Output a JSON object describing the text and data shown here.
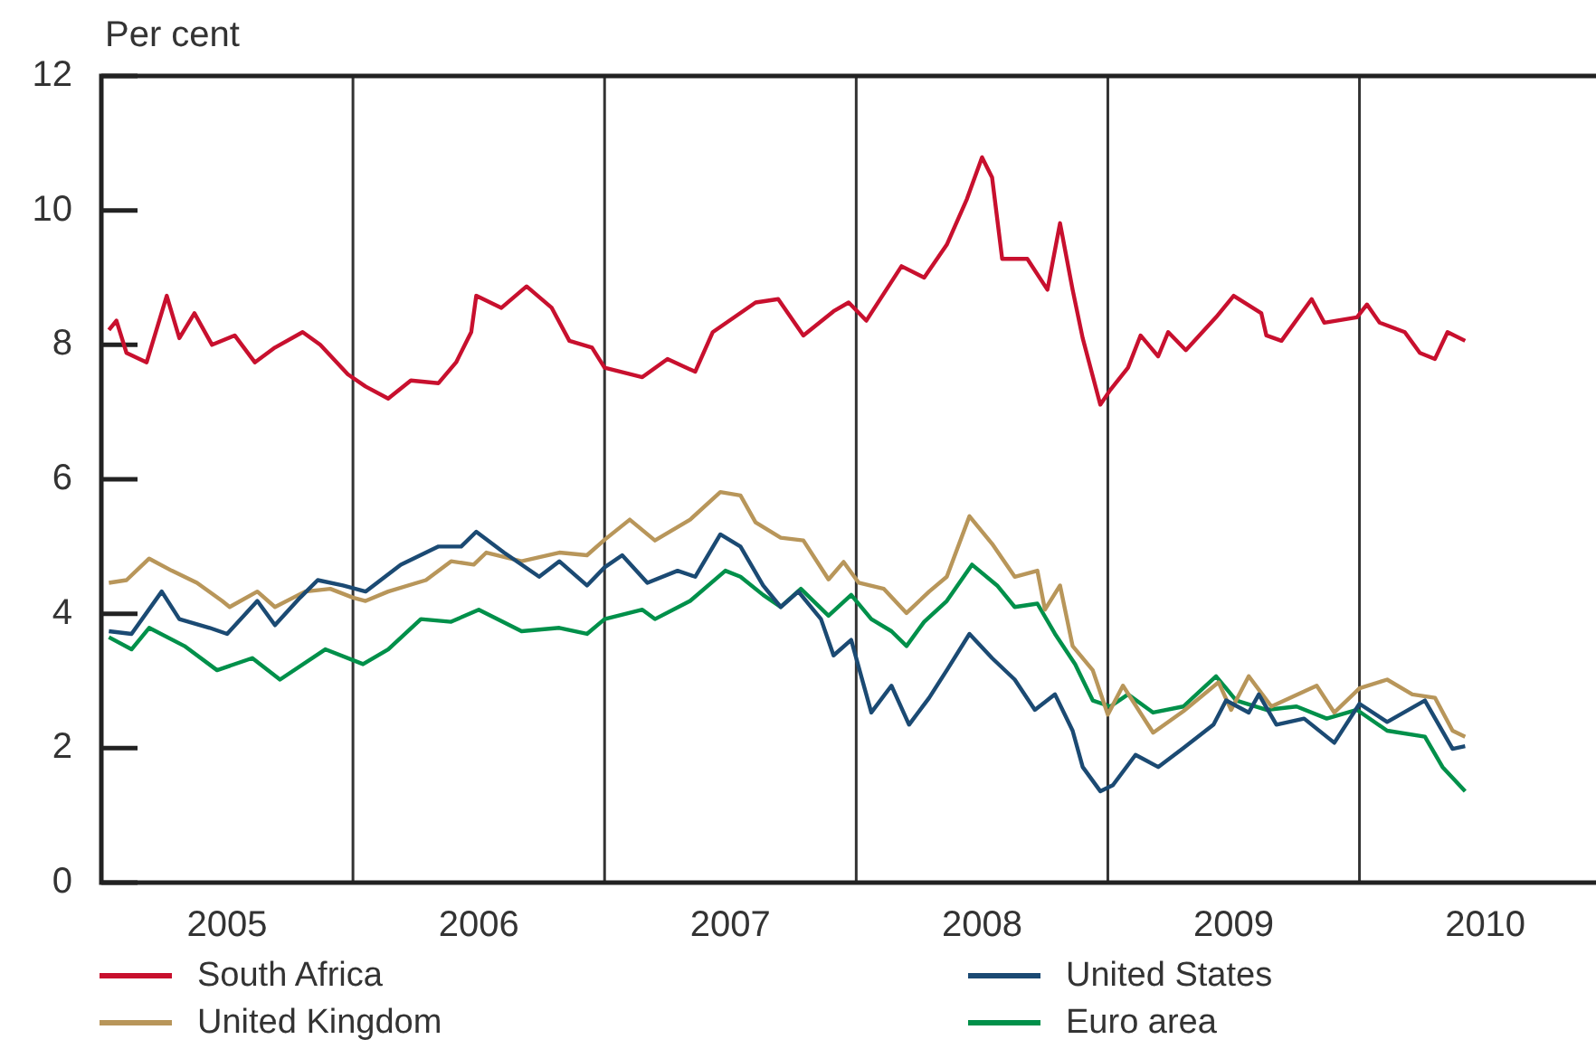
{
  "chart_data": {
    "type": "line",
    "ylabel": "Per cent",
    "xlim": [
      2005,
      2010.94
    ],
    "xticks": [
      {
        "value": 2005.5,
        "label": "2005"
      },
      {
        "value": 2006.5,
        "label": "2006"
      },
      {
        "value": 2007.5,
        "label": "2007"
      },
      {
        "value": 2008.5,
        "label": "2008"
      },
      {
        "value": 2009.5,
        "label": "2009"
      },
      {
        "value": 2010.5,
        "label": "2010"
      }
    ],
    "ylim": [
      0,
      12
    ],
    "yticks": [
      0,
      2,
      4,
      6,
      8,
      10,
      12
    ],
    "grid": false,
    "legend": "bottom",
    "line_style": "solid",
    "marker": "none",
    "ref_lines": [
      {
        "axis": "x",
        "value": 2006,
        "color": "#333333"
      },
      {
        "axis": "x",
        "value": 2007,
        "color": "#333333"
      },
      {
        "axis": "x",
        "value": 2008,
        "color": "#333333"
      },
      {
        "axis": "x",
        "value": 2009,
        "color": "#333333"
      },
      {
        "axis": "x",
        "value": 2010,
        "color": "#333333"
      }
    ],
    "series": [
      {
        "name": "South Africa",
        "color": "#c8102e",
        "x": [
          2005.03,
          2005.06,
          2005.1,
          2005.18,
          2005.26,
          2005.31,
          2005.37,
          2005.44,
          2005.53,
          2005.61,
          2005.69,
          2005.8,
          2005.87,
          2005.98,
          2006.05,
          2006.14,
          2006.23,
          2006.34,
          2006.41,
          2006.47,
          2006.49,
          2006.59,
          2006.69,
          2006.79,
          2006.86,
          2006.95,
          2007.0,
          2007.15,
          2007.25,
          2007.36,
          2007.43,
          2007.6,
          2007.69,
          2007.79,
          2007.91,
          2007.97,
          2008.04,
          2008.18,
          2008.27,
          2008.36,
          2008.44,
          2008.5,
          2008.54,
          2008.58,
          2008.68,
          2008.76,
          2008.81,
          2008.86,
          2008.9,
          2008.97,
          2009.01,
          2009.08,
          2009.13,
          2009.2,
          2009.24,
          2009.31,
          2009.43,
          2009.5,
          2009.61,
          2009.63,
          2009.69,
          2009.81,
          2009.86,
          2009.99,
          2010.03,
          2010.08,
          2010.18,
          2010.24,
          2010.3,
          2010.35,
          2010.42
        ],
        "values": [
          8.22,
          8.36,
          7.88,
          7.74,
          8.73,
          8.1,
          8.47,
          8.0,
          8.14,
          7.74,
          7.96,
          8.19,
          8.0,
          7.56,
          7.38,
          7.2,
          7.47,
          7.43,
          7.74,
          8.19,
          8.73,
          8.55,
          8.87,
          8.55,
          8.06,
          7.96,
          7.66,
          7.52,
          7.79,
          7.6,
          8.19,
          8.63,
          8.68,
          8.14,
          8.5,
          8.63,
          8.36,
          9.17,
          9.0,
          9.49,
          10.17,
          10.79,
          10.49,
          9.28,
          9.28,
          8.82,
          9.81,
          8.82,
          8.1,
          7.11,
          7.33,
          7.66,
          8.14,
          7.83,
          8.19,
          7.92,
          8.41,
          8.73,
          8.47,
          8.14,
          8.06,
          8.68,
          8.33,
          8.41,
          8.6,
          8.33,
          8.19,
          7.88,
          7.79,
          8.19,
          8.06
        ]
      },
      {
        "name": "United States",
        "color": "#1b4a73",
        "x": [
          2005.03,
          2005.12,
          2005.24,
          2005.31,
          2005.43,
          2005.5,
          2005.62,
          2005.69,
          2005.79,
          2005.86,
          2005.96,
          2006.05,
          2006.19,
          2006.34,
          2006.43,
          2006.49,
          2006.6,
          2006.74,
          2006.82,
          2006.93,
          2007.0,
          2007.07,
          2007.17,
          2007.29,
          2007.36,
          2007.46,
          2007.54,
          2007.63,
          2007.7,
          2007.77,
          2007.86,
          2007.91,
          2007.98,
          2008.06,
          2008.14,
          2008.21,
          2008.29,
          2008.36,
          2008.45,
          2008.54,
          2008.63,
          2008.71,
          2008.79,
          2008.86,
          2008.9,
          2008.97,
          2009.02,
          2009.11,
          2009.2,
          2009.3,
          2009.42,
          2009.47,
          2009.56,
          2009.6,
          2009.67,
          2009.78,
          2009.9,
          2010.0,
          2010.11,
          2010.26,
          2010.37,
          2010.42
        ],
        "values": [
          3.74,
          3.7,
          4.33,
          3.92,
          3.79,
          3.7,
          4.19,
          3.83,
          4.24,
          4.5,
          4.42,
          4.33,
          4.73,
          5.0,
          5.0,
          5.22,
          4.91,
          4.55,
          4.78,
          4.42,
          4.69,
          4.87,
          4.46,
          4.64,
          4.55,
          5.18,
          5.0,
          4.42,
          4.1,
          4.33,
          3.92,
          3.38,
          3.61,
          2.53,
          2.93,
          2.35,
          2.75,
          3.16,
          3.7,
          3.34,
          3.02,
          2.57,
          2.8,
          2.26,
          1.72,
          1.36,
          1.45,
          1.9,
          1.72,
          2.0,
          2.35,
          2.71,
          2.53,
          2.8,
          2.35,
          2.44,
          2.08,
          2.66,
          2.39,
          2.71,
          1.99,
          2.03
        ]
      },
      {
        "name": "United Kingdom",
        "color": "#b8965a",
        "x": [
          2005.03,
          2005.1,
          2005.19,
          2005.28,
          2005.38,
          2005.48,
          2005.51,
          2005.62,
          2005.69,
          2005.81,
          2005.91,
          2006.0,
          2006.05,
          2006.14,
          2006.29,
          2006.39,
          2006.48,
          2006.53,
          2006.67,
          2006.82,
          2006.93,
          2007.0,
          2007.1,
          2007.2,
          2007.34,
          2007.46,
          2007.54,
          2007.6,
          2007.7,
          2007.79,
          2007.89,
          2007.95,
          2008.01,
          2008.11,
          2008.2,
          2008.29,
          2008.36,
          2008.45,
          2008.54,
          2008.63,
          2008.72,
          2008.75,
          2008.81,
          2008.86,
          2008.94,
          2009.0,
          2009.06,
          2009.18,
          2009.3,
          2009.44,
          2009.49,
          2009.56,
          2009.65,
          2009.83,
          2009.9,
          2010.0,
          2010.11,
          2010.21,
          2010.3,
          2010.37,
          2010.42
        ],
        "values": [
          4.46,
          4.5,
          4.82,
          4.64,
          4.46,
          4.19,
          4.1,
          4.33,
          4.1,
          4.33,
          4.37,
          4.24,
          4.19,
          4.33,
          4.5,
          4.78,
          4.73,
          4.91,
          4.78,
          4.91,
          4.87,
          5.1,
          5.4,
          5.09,
          5.4,
          5.81,
          5.76,
          5.36,
          5.13,
          5.09,
          4.51,
          4.77,
          4.46,
          4.37,
          4.01,
          4.33,
          4.55,
          5.45,
          5.04,
          4.55,
          4.64,
          4.06,
          4.42,
          3.52,
          3.16,
          2.5,
          2.93,
          2.23,
          2.55,
          2.98,
          2.57,
          3.07,
          2.62,
          2.93,
          2.53,
          2.89,
          3.02,
          2.8,
          2.75,
          2.26,
          2.17
        ]
      },
      {
        "name": "Euro area",
        "color": "#00904a",
        "x": [
          2005.03,
          2005.12,
          2005.19,
          2005.33,
          2005.46,
          2005.6,
          2005.71,
          2005.89,
          2006.04,
          2006.14,
          2006.27,
          2006.39,
          2006.5,
          2006.67,
          2006.82,
          2006.93,
          2007.0,
          2007.15,
          2007.2,
          2007.34,
          2007.48,
          2007.54,
          2007.63,
          2007.7,
          2007.78,
          2007.89,
          2007.98,
          2008.06,
          2008.14,
          2008.2,
          2008.27,
          2008.36,
          2008.46,
          2008.56,
          2008.63,
          2008.72,
          2008.79,
          2008.87,
          2008.94,
          2009.01,
          2009.08,
          2009.18,
          2009.3,
          2009.43,
          2009.51,
          2009.63,
          2009.75,
          2009.87,
          2009.99,
          2010.11,
          2010.26,
          2010.33,
          2010.42
        ],
        "values": [
          3.65,
          3.47,
          3.79,
          3.52,
          3.16,
          3.34,
          3.02,
          3.47,
          3.25,
          3.47,
          3.92,
          3.88,
          4.06,
          3.74,
          3.79,
          3.7,
          3.92,
          4.06,
          3.92,
          4.19,
          4.64,
          4.55,
          4.28,
          4.1,
          4.37,
          3.97,
          4.28,
          3.92,
          3.74,
          3.52,
          3.88,
          4.19,
          4.73,
          4.42,
          4.1,
          4.15,
          3.7,
          3.25,
          2.71,
          2.62,
          2.8,
          2.53,
          2.62,
          3.07,
          2.71,
          2.57,
          2.62,
          2.44,
          2.57,
          2.26,
          2.17,
          1.72,
          1.36
        ]
      }
    ]
  }
}
